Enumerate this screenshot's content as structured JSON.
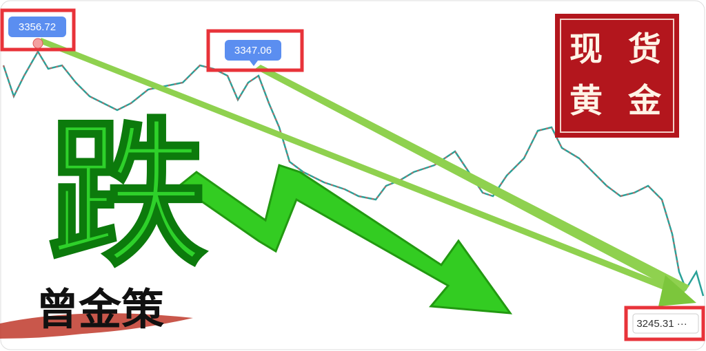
{
  "price_labels": [
    "3356.72",
    "3347.06",
    "3245.31 ···"
  ],
  "headline": "跌",
  "stamp": [
    "现",
    "货",
    "黄",
    "金"
  ],
  "signature": "曾金策"
}
